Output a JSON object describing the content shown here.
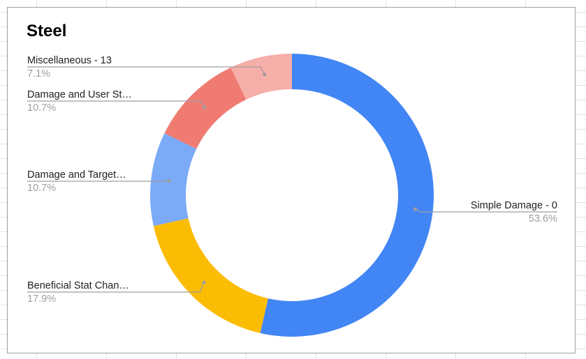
{
  "chart_data": {
    "type": "donut",
    "title": "Steel",
    "slices": [
      {
        "name": "Simple Damage - 0",
        "percent_label": "53.6%",
        "value": 53.6,
        "color": "#4285f4"
      },
      {
        "name": "Beneficial Stat Chan…",
        "percent_label": "17.9%",
        "value": 17.9,
        "color": "#fbbc04"
      },
      {
        "name": "Damage and Target…",
        "percent_label": "10.7%",
        "value": 10.7,
        "color": "#7baaf7"
      },
      {
        "name": "Damage and User St…",
        "percent_label": "10.7%",
        "value": 10.7,
        "color": "#f07b72"
      },
      {
        "name": "Miscellaneous - 13",
        "percent_label": "7.1%",
        "value": 7.1,
        "color": "#f6aea9"
      }
    ],
    "legend": "none",
    "labels": "callout"
  }
}
